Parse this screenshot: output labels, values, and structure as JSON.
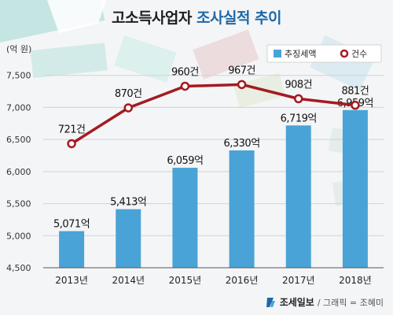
{
  "title_main": "고소득사업자",
  "title_accent": "조사실적 추이",
  "footer": {
    "brand": "조세일보",
    "credit": "/ 그래픽 = 조혜미"
  },
  "colors": {
    "bar": "#4aa3d6",
    "line": "#a31b22",
    "title_accent": "#1e67a8",
    "background": "#f4f5f6"
  },
  "chart_data": {
    "type": "bar",
    "categories": [
      "2013년",
      "2014년",
      "2015년",
      "2016년",
      "2017년",
      "2018년"
    ],
    "ylabel": "(억 원)",
    "ylim": [
      4500,
      8000
    ],
    "yticks": [
      "4,500",
      "5,000",
      "5,500",
      "6,000",
      "6,500",
      "7,000",
      "7,500"
    ],
    "ytick_values": [
      4500,
      5000,
      5500,
      6000,
      6500,
      7000,
      7500
    ],
    "legend_position": "top-right",
    "series": [
      {
        "name": "추징세액",
        "kind": "bar",
        "values": [
          5071,
          5413,
          6059,
          6330,
          6719,
          6959
        ],
        "labels": [
          "5,071억",
          "5,413억",
          "6,059억",
          "6,330억",
          "6,719억",
          "6,959억"
        ]
      },
      {
        "name": "건수",
        "kind": "line",
        "values": [
          721,
          870,
          960,
          967,
          908,
          881
        ],
        "labels": [
          "721건",
          "870건",
          "960건",
          "967건",
          "908건",
          "881건"
        ]
      }
    ]
  }
}
